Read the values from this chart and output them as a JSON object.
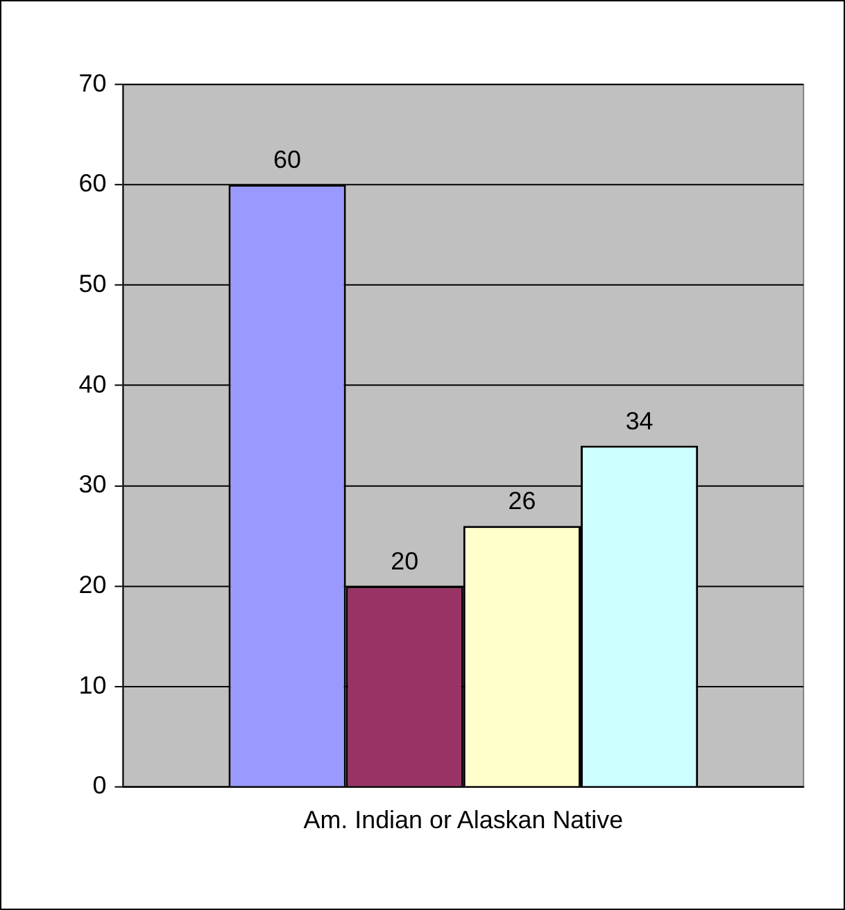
{
  "chart_data": {
    "type": "bar",
    "categories": [
      "Am. Indian or Alaskan Native"
    ],
    "series": [
      {
        "color": "#9999ff",
        "values": [
          60
        ]
      },
      {
        "color": "#993366",
        "values": [
          20
        ]
      },
      {
        "color": "#ffffcc",
        "values": [
          26
        ]
      },
      {
        "color": "#ccffff",
        "values": [
          34
        ]
      }
    ],
    "ylim": [
      0,
      70
    ],
    "yticks": [
      0,
      10,
      20,
      30,
      40,
      50,
      60,
      70
    ],
    "grid": "y",
    "legend": false,
    "data_labels": true
  }
}
